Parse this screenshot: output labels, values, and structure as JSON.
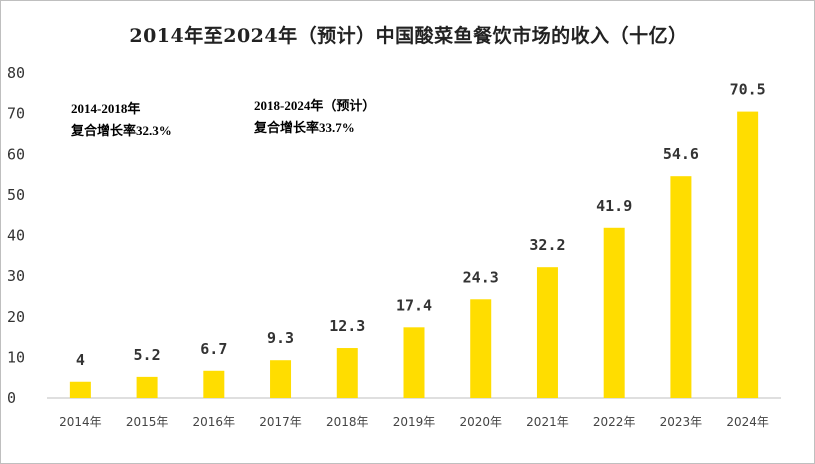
{
  "chart_data": {
    "type": "bar",
    "title": "2014年至2024年（预计）中国酸菜鱼餐饮市场的收入（十亿）",
    "xlabel": "",
    "ylabel": "",
    "categories": [
      "2014年",
      "2015年",
      "2016年",
      "2017年",
      "2018年",
      "2019年",
      "2020年",
      "2021年",
      "2022年",
      "2023年",
      "2024年"
    ],
    "values": [
      4,
      5.2,
      6.7,
      9.3,
      12.3,
      17.4,
      24.3,
      32.2,
      41.9,
      54.6,
      70.5
    ],
    "value_labels": [
      "4",
      "5.2",
      "6.7",
      "9.3",
      "12.3",
      "17.4",
      "24.3",
      "32.2",
      "41.9",
      "54.6",
      "70.5"
    ],
    "ylim": [
      0,
      80
    ],
    "yticks": [
      "0",
      "10",
      "20",
      "30",
      "40",
      "50",
      "60",
      "70",
      "80"
    ],
    "grid": false,
    "bar_color": "#FFDD00",
    "annotations": [
      {
        "line1": "2014-2018年",
        "line2": "复合增长率32.3%"
      },
      {
        "line1": "2018-2024年（预计）",
        "line2": "复合增长率33.7%"
      }
    ]
  }
}
